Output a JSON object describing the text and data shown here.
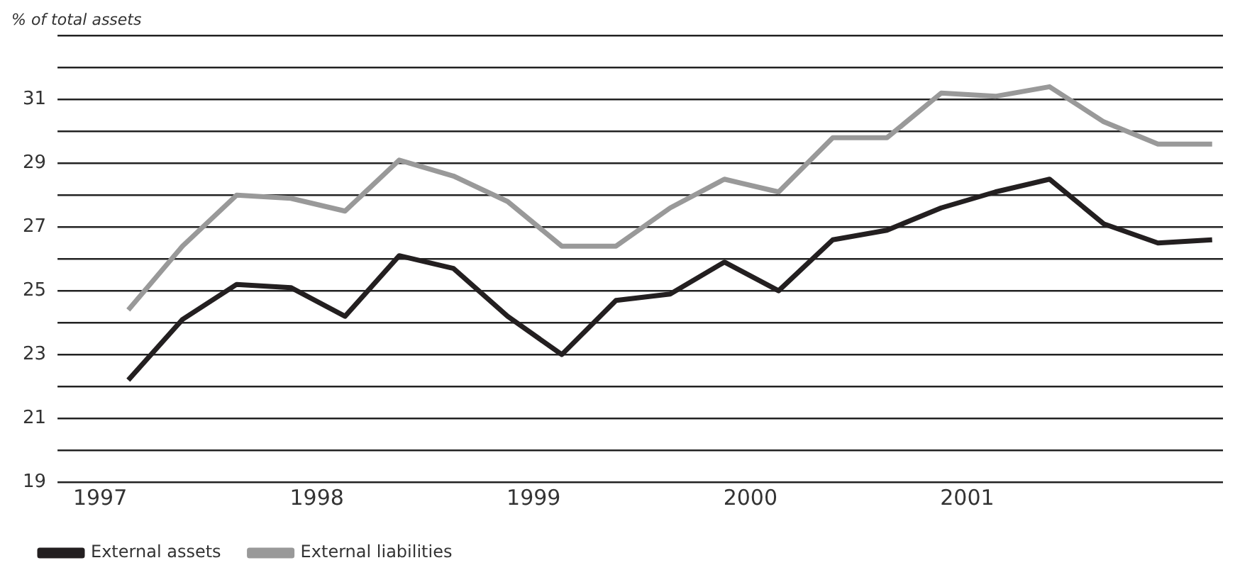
{
  "chart_data": {
    "type": "line",
    "ylabel": "% of total assets",
    "x": [
      1997.13,
      1997.38,
      1997.63,
      1997.88,
      1998.13,
      1998.38,
      1998.63,
      1998.88,
      1999.13,
      1999.38,
      1999.63,
      1999.88,
      2000.13,
      2000.38,
      2000.63,
      2000.88,
      2001.13,
      2001.38,
      2001.63,
      2001.88,
      2002.13
    ],
    "series": [
      {
        "name": "External assets",
        "color": "#231f20",
        "values": [
          22.2,
          24.1,
          25.2,
          25.1,
          24.2,
          26.1,
          25.7,
          24.2,
          23.0,
          24.7,
          24.9,
          25.9,
          25.0,
          26.6,
          26.9,
          27.6,
          28.1,
          28.5,
          27.1,
          26.5,
          26.6
        ]
      },
      {
        "name": "External liabilities",
        "color": "#999999",
        "values": [
          24.4,
          26.4,
          28.0,
          27.9,
          27.5,
          29.1,
          28.6,
          27.8,
          26.4,
          26.4,
          27.6,
          28.5,
          28.1,
          29.8,
          29.8,
          31.2,
          31.1,
          31.4,
          30.3,
          29.6,
          29.6
        ]
      }
    ],
    "xlim": [
      1997,
      2002.18
    ],
    "xticks": [
      1997,
      1998,
      1999,
      2000,
      2001
    ],
    "ylim": [
      19,
      33
    ],
    "yticks": [
      19,
      {
        "value": 20,
        "label": null
      },
      21,
      {
        "value": 22,
        "label": null
      },
      23,
      {
        "value": 24,
        "label": null
      },
      25,
      {
        "value": 26,
        "label": null
      },
      27,
      {
        "value": 28,
        "label": null
      },
      29,
      {
        "value": 30,
        "label": null
      },
      31,
      {
        "value": 32,
        "label": null
      },
      {
        "value": 33,
        "label": null
      }
    ],
    "grid": "y",
    "legend": "bottom",
    "marker": "none",
    "line_style": "solid"
  }
}
